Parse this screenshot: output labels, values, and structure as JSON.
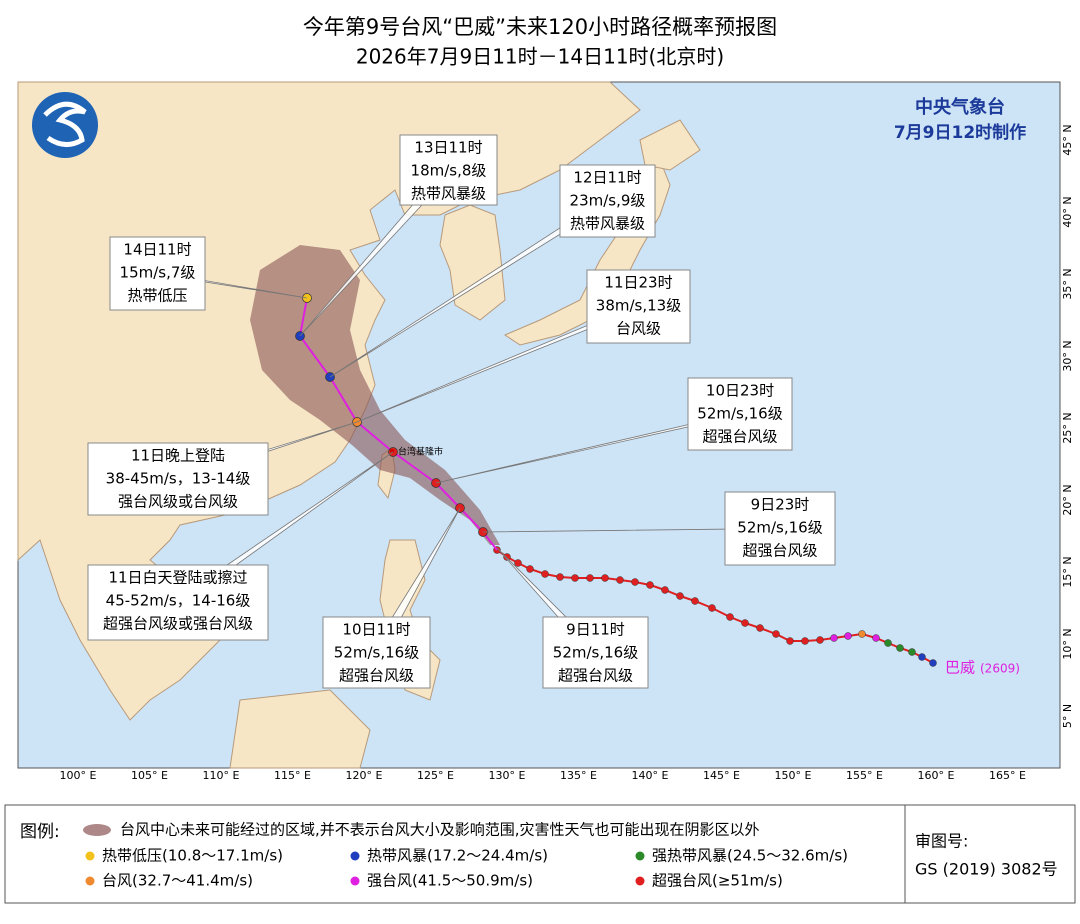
{
  "title": {
    "line1": "今年第9号台风“巴威”未来120小时路径概率预报图",
    "line2": "2026年7月9日11时－14日11时(北京时)"
  },
  "agency": {
    "name": "中央气象台",
    "made": "7月9日12时制作"
  },
  "storm": {
    "name": "巴威",
    "code": "(2609)"
  },
  "city": "台湾基隆市",
  "callouts": [
    {
      "lines": [
        "13日11时",
        "18m/s,8级",
        "热带风暴级"
      ]
    },
    {
      "lines": [
        "12日11时",
        "23m/s,9级",
        "热带风暴级"
      ]
    },
    {
      "lines": [
        "14日11时",
        "15m/s,7级",
        "热带低压"
      ]
    },
    {
      "lines": [
        "11日23时",
        "38m/s,13级",
        "台风级"
      ]
    },
    {
      "lines": [
        "10日23时",
        "52m/s,16级",
        "超强台风级"
      ]
    },
    {
      "lines": [
        "9日23时",
        "52m/s,16级",
        "超强台风级"
      ]
    },
    {
      "lines": [
        "9日11时",
        "52m/s,16级",
        "超强台风级"
      ]
    },
    {
      "lines": [
        "10日11时",
        "52m/s,16级",
        "超强台风级"
      ]
    },
    {
      "lines": [
        "11日晚上登陆",
        "38-45m/s，13-14级",
        "强台风级或台风级"
      ]
    },
    {
      "lines": [
        "11日白天登陆或擦过",
        "45-52m/s，14-16级",
        "超强台风级或强台风级"
      ]
    }
  ],
  "lon_labels": [
    "100° E",
    "105° E",
    "110° E",
    "115° E",
    "120° E",
    "125° E",
    "130° E",
    "135° E",
    "140° E",
    "145° E",
    "150° E",
    "155° E",
    "160° E",
    "165° E"
  ],
  "lat_labels": [
    "45° N",
    "40° N",
    "35° N",
    "30° N",
    "25° N",
    "20° N",
    "15° N",
    "10° N",
    "5° N"
  ],
  "legend": {
    "label": "图例:",
    "cone": "台风中心未来可能经过的区域,并不表示台风大小及影响范围,灾害性天气也可能出现在阴影区以外",
    "items": [
      "热带低压(10.8～17.1m/s)",
      "热带风暴(17.2～24.4m/s)",
      "强热带风暴(24.5～32.6m/s)",
      "台风(32.7～41.4m/s)",
      "强台风(41.5～50.9m/s)",
      "超强台风(≥51m/s)"
    ]
  },
  "review": {
    "label": "审图号:",
    "code": "GS (2019) 3082号"
  }
}
